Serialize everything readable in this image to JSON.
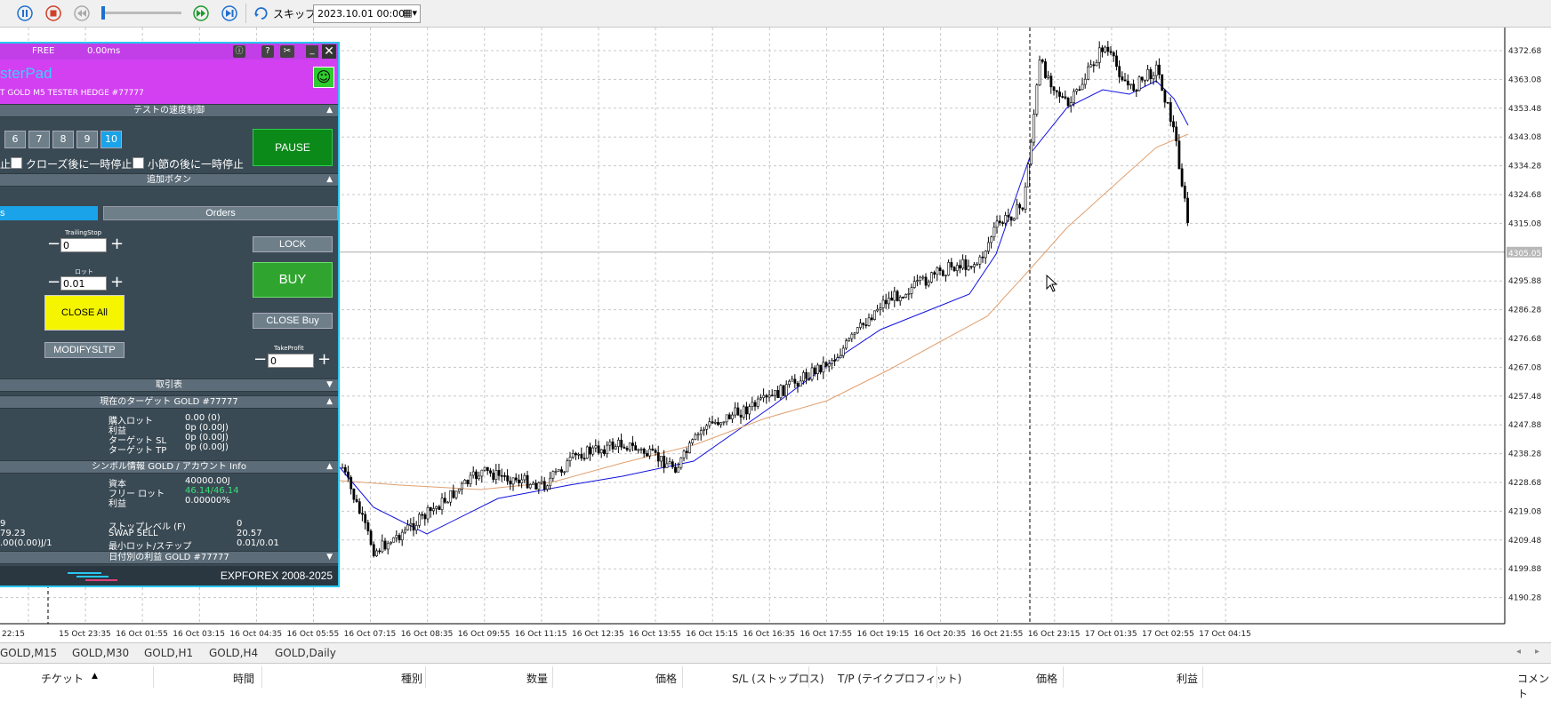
{
  "toolbar": {
    "skip_label": "スキップ",
    "date_value": "2023.10.01 00:00"
  },
  "chart": {
    "price_labels": [
      "4372.68",
      "4363.08",
      "4353.48",
      "4343.08",
      "4334.28",
      "4324.68",
      "4315.08",
      "4305.05",
      "4295.88",
      "4286.28",
      "4276.68",
      "4267.08",
      "4257.48",
      "4247.88",
      "4238.28",
      "4228.68",
      "4219.08",
      "4209.48",
      "4199.88",
      "4190.28"
    ],
    "current_price": "4305.05",
    "time_labels": [
      "22:15",
      "15 Oct 23:35",
      "16 Oct 01:55",
      "16 Oct 03:15",
      "16 Oct 04:35",
      "16 Oct 05:55",
      "16 Oct 07:15",
      "16 Oct 08:35",
      "16 Oct 09:55",
      "16 Oct 11:15",
      "16 Oct 12:35",
      "16 Oct 13:55",
      "16 Oct 15:15",
      "16 Oct 16:35",
      "16 Oct 17:55",
      "16 Oct 19:15",
      "16 Oct 20:35",
      "16 Oct 21:55",
      "16 Oct 23:15",
      "17 Oct 01:35",
      "17 Oct 02:55",
      "17 Oct 04:15"
    ]
  },
  "tabs": [
    "GOLD,M15",
    "GOLD,M30",
    "GOLD,H1",
    "GOLD,H4",
    "GOLD,Daily"
  ],
  "columns": [
    "チケット",
    "時間",
    "種別",
    "数量",
    "価格",
    "S/L (ストップロス)",
    "T/P (テイクプロフィット)",
    "価格",
    "利益",
    "コメント"
  ],
  "panel": {
    "free": "FREE",
    "ms": "0.00ms",
    "title": "sterPad",
    "subtitle": "T GOLD M5 TESTER HEDGE  #77777",
    "sec_speed": "テストの速度制御",
    "speed_numbers": [
      "6",
      "7",
      "8",
      "9",
      "10"
    ],
    "pause": "PAUSE",
    "cb_left": "止",
    "cb_close": "クローズ後に一時停止",
    "cb_bar": "小節の後に一時停止",
    "sec_extra": "追加ボタン",
    "tab_left": "s",
    "tab_orders": "Orders",
    "trailing_label": "TrailingStop",
    "trailing_value": "0",
    "lot_label": "ロット",
    "lot_value": "0.01",
    "lock": "LOCK",
    "buy": "BUY",
    "close_all": "CLOSE All",
    "close_buy": "CLOSE Buy",
    "modify": "MODIFYSLTP",
    "tp_label": "TakeProfit",
    "tp_value": "0",
    "sec_trades": "取引表",
    "sec_target": "現在のターゲット GOLD  #77777",
    "target": [
      [
        "購入ロット",
        "0.00 (0)"
      ],
      [
        "利益",
        "0p (0.00J)"
      ],
      [
        "ターゲット SL",
        "0p (0.00J)"
      ],
      [
        "ターゲット TP",
        "0p (0.00J)"
      ]
    ],
    "sec_symbol": "シンボル情報 GOLD / アカウント Info",
    "account": [
      [
        "資本",
        "40000.00J"
      ],
      [
        "フリー ロット",
        "46.14/46.14"
      ],
      [
        "利益",
        "0.00000%"
      ]
    ],
    "symbol_left": [
      "9",
      "79.23",
      ".00(0.00)J/1"
    ],
    "symbol": [
      [
        "ストップレベル (F)",
        "0"
      ],
      [
        "SWAP SELL",
        "20.57"
      ],
      [
        "最小ロット/ステップ",
        "0.01/0.01"
      ]
    ],
    "sec_daily": "日付別の利益 GOLD  #77777",
    "footer": "EXPFOREX 2008-2025"
  }
}
